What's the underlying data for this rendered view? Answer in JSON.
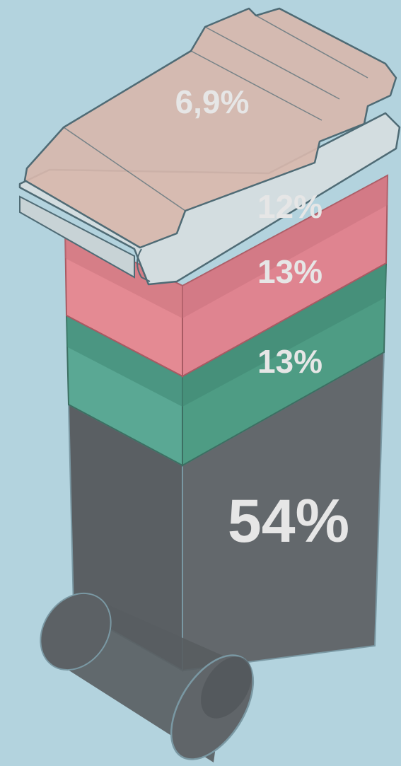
{
  "colors": {
    "background": "#b3d3de",
    "outline": "#4f6b75",
    "label_text": "#e6e6e6"
  },
  "chart_data": {
    "type": "stacked-3d-bin",
    "unit": "%",
    "segments": [
      {
        "label": "6,9%",
        "value": 6.9,
        "color": "#d8b8ae"
      },
      {
        "label": "12%",
        "value": 12,
        "color": "#e78c94"
      },
      {
        "label": "13%",
        "value": 13,
        "color": "#5fae95"
      },
      {
        "label": "13%",
        "value": 13,
        "color": "#4b9a82"
      },
      {
        "label": "54%",
        "value": 54,
        "color": "#5f6468"
      }
    ]
  }
}
